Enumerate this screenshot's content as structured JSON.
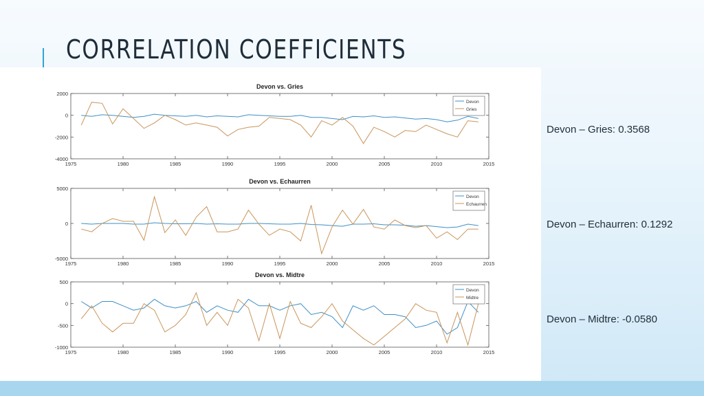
{
  "slide": {
    "title": "CORRELATION COEFFICIENTS"
  },
  "labels": [
    {
      "text": "Devon – Gries: 0.3568"
    },
    {
      "text": "Devon – Echaurren: 0.1292"
    },
    {
      "text": "Devon – Midtre: -0.0580"
    }
  ],
  "colors": {
    "devon": "#3d8fc6",
    "other": "#c8955a",
    "accent": "#2ea3d6"
  },
  "chart_data": [
    {
      "type": "line",
      "title": "Devon vs. Gries",
      "xlabel": "",
      "ylabel": "",
      "xlim": [
        1975,
        2015
      ],
      "ylim": [
        -4000,
        2000
      ],
      "xticks": [
        1975,
        1980,
        1985,
        1990,
        1995,
        2000,
        2005,
        2010,
        2015
      ],
      "yticks": [
        2000,
        0,
        -2000,
        -4000
      ],
      "legend": "top-right",
      "x": [
        1976,
        1977,
        1978,
        1979,
        1980,
        1981,
        1982,
        1983,
        1984,
        1985,
        1986,
        1987,
        1988,
        1989,
        1990,
        1991,
        1992,
        1993,
        1994,
        1995,
        1996,
        1997,
        1998,
        1999,
        2000,
        2001,
        2002,
        2003,
        2004,
        2005,
        2006,
        2007,
        2008,
        2009,
        2010,
        2011,
        2012,
        2013,
        2014
      ],
      "series": [
        {
          "name": "Devon",
          "color": "#3d8fc6",
          "values": [
            0,
            -100,
            50,
            0,
            -100,
            -200,
            -100,
            100,
            0,
            -50,
            -100,
            0,
            -150,
            -50,
            -100,
            -150,
            50,
            0,
            -50,
            -100,
            -100,
            0,
            -200,
            -200,
            -300,
            -400,
            -100,
            -150,
            -50,
            -200,
            -150,
            -250,
            -350,
            -300,
            -400,
            -600,
            -450,
            -100,
            -300
          ]
        },
        {
          "name": "Gries",
          "color": "#c8955a",
          "values": [
            -900,
            1200,
            1100,
            -800,
            600,
            -300,
            -1200,
            -700,
            0,
            -400,
            -900,
            -700,
            -900,
            -1100,
            -1900,
            -1300,
            -1100,
            -1000,
            -200,
            -300,
            -400,
            -900,
            -2000,
            -500,
            -900,
            -200,
            -1000,
            -2600,
            -1100,
            -1500,
            -2000,
            -1400,
            -1500,
            -900,
            -1300,
            -1700,
            -2000,
            -500,
            -600
          ]
        }
      ]
    },
    {
      "type": "line",
      "title": "Devon vs. Echaurren",
      "xlabel": "",
      "ylabel": "",
      "xlim": [
        1975,
        2015
      ],
      "ylim": [
        -5000,
        5000
      ],
      "xticks": [
        1975,
        1980,
        1985,
        1990,
        1995,
        2000,
        2005,
        2010,
        2015
      ],
      "yticks": [
        5000,
        0,
        -5000
      ],
      "legend": "top-right",
      "x": [
        1976,
        1977,
        1978,
        1979,
        1980,
        1981,
        1982,
        1983,
        1984,
        1985,
        1986,
        1987,
        1988,
        1989,
        1990,
        1991,
        1992,
        1993,
        1994,
        1995,
        1996,
        1997,
        1998,
        1999,
        2000,
        2001,
        2002,
        2003,
        2004,
        2005,
        2006,
        2007,
        2008,
        2009,
        2010,
        2011,
        2012,
        2013,
        2014
      ],
      "series": [
        {
          "name": "Devon",
          "color": "#3d8fc6",
          "values": [
            0,
            -100,
            0,
            0,
            0,
            -100,
            -100,
            100,
            0,
            -50,
            -50,
            0,
            -100,
            -50,
            -100,
            -100,
            0,
            0,
            -50,
            -100,
            -100,
            0,
            -150,
            -200,
            -300,
            -400,
            -100,
            -100,
            -50,
            -200,
            -200,
            -250,
            -400,
            -300,
            -450,
            -600,
            -500,
            -100,
            -300
          ]
        },
        {
          "name": "Echaurren",
          "color": "#c8955a",
          "values": [
            -800,
            -1200,
            0,
            700,
            300,
            300,
            -2400,
            3800,
            -1300,
            500,
            -1700,
            900,
            2400,
            -1200,
            -1200,
            -800,
            1900,
            -100,
            -1700,
            -800,
            -1200,
            -2500,
            2600,
            -4300,
            -500,
            1900,
            -100,
            2000,
            -500,
            -800,
            500,
            -300,
            -600,
            -300,
            -2100,
            -1200,
            -2300,
            -800,
            -800
          ]
        }
      ]
    },
    {
      "type": "line",
      "title": "Devon vs. Midtre",
      "xlabel": "",
      "ylabel": "",
      "xlim": [
        1975,
        2015
      ],
      "ylim": [
        -1000,
        500
      ],
      "xticks": [
        1975,
        1980,
        1985,
        1990,
        1995,
        2000,
        2005,
        2010,
        2015
      ],
      "yticks": [
        500,
        0,
        -500,
        -1000
      ],
      "legend": "top-right",
      "x": [
        1976,
        1977,
        1978,
        1979,
        1980,
        1981,
        1982,
        1983,
        1984,
        1985,
        1986,
        1987,
        1988,
        1989,
        1990,
        1991,
        1992,
        1993,
        1994,
        1995,
        1996,
        1997,
        1998,
        1999,
        2000,
        2001,
        2002,
        2003,
        2004,
        2005,
        2006,
        2007,
        2008,
        2009,
        2010,
        2011,
        2012,
        2013,
        2014
      ],
      "series": [
        {
          "name": "Devon",
          "color": "#3d8fc6",
          "values": [
            50,
            -100,
            50,
            50,
            -50,
            -150,
            -100,
            100,
            -50,
            -100,
            -50,
            50,
            -200,
            -50,
            -150,
            -200,
            100,
            -50,
            -50,
            -150,
            -50,
            0,
            -250,
            -200,
            -300,
            -550,
            -50,
            -150,
            -50,
            -250,
            -250,
            -300,
            -550,
            -500,
            -400,
            -700,
            -550,
            50,
            -200
          ]
        },
        {
          "name": "Midtre",
          "color": "#c8955a",
          "values": [
            -350,
            -50,
            -450,
            -650,
            -450,
            -450,
            0,
            -150,
            -650,
            -500,
            -250,
            250,
            -500,
            -200,
            -500,
            100,
            -100,
            -850,
            0,
            -800,
            50,
            -450,
            -550,
            -300,
            0,
            -400,
            -600,
            -800,
            -950,
            -750,
            -550,
            -350,
            0,
            -150,
            -200,
            -900,
            -200,
            -950,
            0
          ]
        }
      ]
    }
  ]
}
